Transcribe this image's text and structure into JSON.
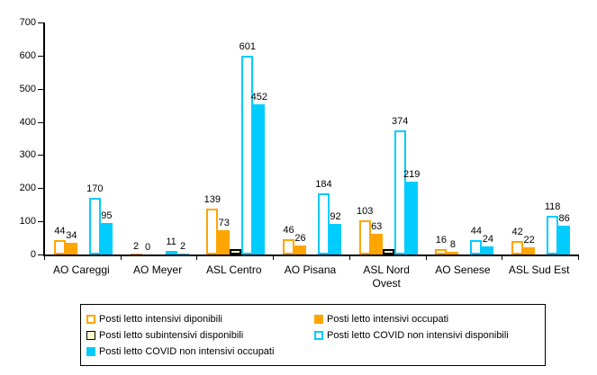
{
  "chart_data": {
    "type": "bar",
    "title": "",
    "categories": [
      "AO Careggi",
      "AO Meyer",
      "ASL Centro",
      "AO Pisana",
      "ASL Nord Ovest",
      "AO Senese",
      "ASL Sud Est"
    ],
    "series": [
      {
        "name": "Posti letto intensivi diponibili",
        "style": "hollow",
        "border_color": "#FFA500",
        "fill_color": "#FFFFFF",
        "values": [
          44,
          2,
          139,
          46,
          103,
          16,
          42
        ],
        "labels": [
          "44",
          "2",
          "139",
          "46",
          "103",
          "16",
          "42"
        ]
      },
      {
        "name": "Posti letto intensivi occupati",
        "style": "solid",
        "border_color": "#FFA500",
        "fill_color": "#FFA500",
        "values": [
          34,
          0,
          73,
          26,
          63,
          8,
          22
        ],
        "labels": [
          "34",
          "0",
          "73",
          "26",
          "63",
          "8",
          "22"
        ]
      },
      {
        "name": "Posti letto subintensivi disponibili",
        "style": "hollow",
        "border_color": "#000000",
        "fill_color": "#FFFFCC",
        "values": [
          0,
          0,
          15,
          0,
          15,
          0,
          0
        ],
        "labels": [
          "",
          "",
          "",
          "",
          "",
          "",
          ""
        ]
      },
      {
        "name": "Posti letto COVID non intensivi disponibili",
        "style": "hollow",
        "border_color": "#00CCFF",
        "fill_color": "#FFFFFF",
        "values": [
          170,
          11,
          601,
          184,
          374,
          44,
          118
        ],
        "labels": [
          "170",
          "11",
          "601",
          "184",
          "374",
          "44",
          "118"
        ]
      },
      {
        "name": "Posti letto COVID non intensivi occupati",
        "style": "solid",
        "border_color": "#00CCFF",
        "fill_color": "#00CCFF",
        "values": [
          95,
          2,
          452,
          92,
          219,
          24,
          86
        ],
        "labels": [
          "95",
          "2",
          "452",
          "92",
          "219",
          "24",
          "86"
        ]
      }
    ],
    "ylim": [
      0,
      700
    ],
    "yticks": [
      0,
      100,
      200,
      300,
      400,
      500,
      600,
      700
    ],
    "grid": false,
    "legend_position": "bottom",
    "axis_color": "#000000",
    "label_color": "#000000"
  }
}
